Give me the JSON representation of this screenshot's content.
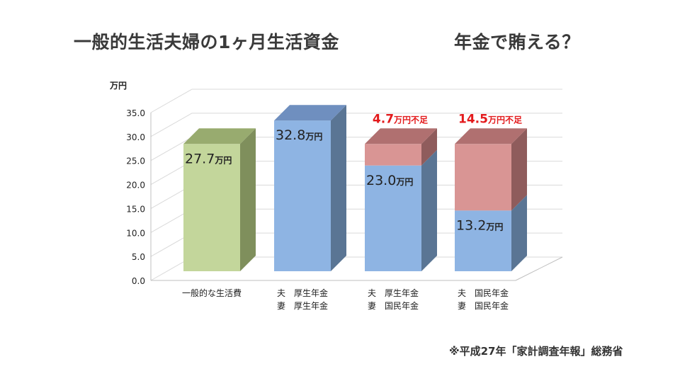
{
  "title": {
    "main": "一般的生活夫婦の1ヶ月生活資金",
    "sub": "年金で賄える？"
  },
  "source": "※平成27年「家計調査年報」総務省",
  "chart_data": {
    "type": "bar",
    "stacked": true,
    "three_d": true,
    "y_unit": "万円",
    "ylim": [
      0,
      35
    ],
    "y_ticks": [
      "0.0",
      "5.0",
      "10.0",
      "15.0",
      "20.0",
      "25.0",
      "30.0",
      "35.0"
    ],
    "grid": true,
    "categories": [
      [
        "一般的な生活費"
      ],
      [
        "夫　厚生年金",
        "妻　厚生年金"
      ],
      [
        "夫　厚生年金",
        "妻　国民年金"
      ],
      [
        "夫　国民年金",
        "妻　国民年金"
      ]
    ],
    "bars": [
      {
        "value": 27.7,
        "label": "27.7",
        "unit": "万円",
        "shortfall": 0,
        "shortfall_label": "",
        "color": "#c3d69b"
      },
      {
        "value": 32.8,
        "label": "32.8",
        "unit": "万円",
        "shortfall": 0,
        "shortfall_label": "",
        "color": "#8eb4e3"
      },
      {
        "value": 23.0,
        "label": "23.0",
        "unit": "万円",
        "shortfall": 4.7,
        "shortfall_label": "4.7",
        "color": "#8eb4e3"
      },
      {
        "value": 13.2,
        "label": "13.2",
        "unit": "万円",
        "shortfall": 14.5,
        "shortfall_label": "14.5",
        "color": "#8eb4e3"
      }
    ],
    "shortfall_suffix": "万円不足",
    "colors": {
      "green_front": "#c3d69b",
      "green_side": "#7f8f5c",
      "green_top": "#98ab6f",
      "blue_front": "#8eb4e3",
      "blue_side": "#5a7594",
      "blue_top": "#6f8fbf",
      "red_front": "#d99594",
      "red_side": "#8f5c5c",
      "red_top": "#b07070",
      "shortfall_text": "#e31a1c"
    }
  }
}
